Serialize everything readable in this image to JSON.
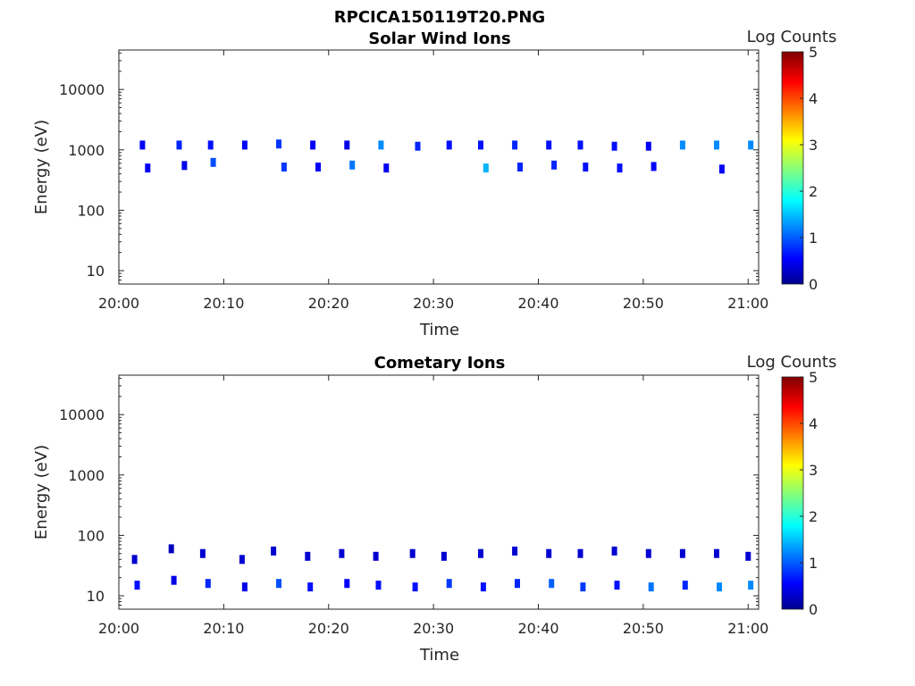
{
  "figure_title": "RPCICA150119T20.PNG",
  "chart_data": [
    {
      "type": "heatmap",
      "title": "Solar Wind Ions",
      "xlabel": "Time",
      "ylabel": "Energy (eV)",
      "xlim": [
        "20:00",
        "21:01"
      ],
      "x_ticks": [
        "20:00",
        "20:10",
        "20:20",
        "20:30",
        "20:40",
        "20:50",
        "21:00"
      ],
      "y_scale": "log",
      "ylim": [
        6,
        45000
      ],
      "y_ticks": [
        "10",
        "100",
        "1000",
        "10000"
      ],
      "colorbar": {
        "label": "Log Counts",
        "range": [
          0,
          5
        ],
        "ticks": [
          "0",
          "1",
          "2",
          "3",
          "4",
          "5"
        ],
        "colormap": "jet"
      },
      "points": [
        {
          "t": "20:02:15",
          "e": 1200,
          "c": 0.6
        },
        {
          "t": "20:02:45",
          "e": 500,
          "c": 0.6
        },
        {
          "t": "20:05:45",
          "e": 1200,
          "c": 0.8
        },
        {
          "t": "20:06:15",
          "e": 550,
          "c": 0.5
        },
        {
          "t": "20:08:45",
          "e": 1200,
          "c": 0.7
        },
        {
          "t": "20:09:00",
          "e": 620,
          "c": 1.0
        },
        {
          "t": "20:12:00",
          "e": 1200,
          "c": 0.6
        },
        {
          "t": "20:15:15",
          "e": 1250,
          "c": 0.9
        },
        {
          "t": "20:15:45",
          "e": 520,
          "c": 0.9
        },
        {
          "t": "20:18:30",
          "e": 1200,
          "c": 0.6
        },
        {
          "t": "20:19:00",
          "e": 520,
          "c": 0.6
        },
        {
          "t": "20:21:45",
          "e": 1200,
          "c": 0.5
        },
        {
          "t": "20:22:15",
          "e": 560,
          "c": 1.2
        },
        {
          "t": "20:25:00",
          "e": 1200,
          "c": 1.3
        },
        {
          "t": "20:25:30",
          "e": 500,
          "c": 0.6
        },
        {
          "t": "20:28:30",
          "e": 1150,
          "c": 0.8
        },
        {
          "t": "20:31:30",
          "e": 1200,
          "c": 0.7
        },
        {
          "t": "20:34:30",
          "e": 1200,
          "c": 0.7
        },
        {
          "t": "20:35:00",
          "e": 500,
          "c": 1.5
        },
        {
          "t": "20:37:45",
          "e": 1200,
          "c": 0.8
        },
        {
          "t": "20:38:15",
          "e": 520,
          "c": 0.8
        },
        {
          "t": "20:41:00",
          "e": 1200,
          "c": 0.7
        },
        {
          "t": "20:41:30",
          "e": 560,
          "c": 0.8
        },
        {
          "t": "20:44:00",
          "e": 1200,
          "c": 0.7
        },
        {
          "t": "20:44:30",
          "e": 520,
          "c": 0.7
        },
        {
          "t": "20:47:15",
          "e": 1150,
          "c": 0.7
        },
        {
          "t": "20:47:45",
          "e": 500,
          "c": 0.7
        },
        {
          "t": "20:50:30",
          "e": 1150,
          "c": 0.6
        },
        {
          "t": "20:51:00",
          "e": 530,
          "c": 0.6
        },
        {
          "t": "20:53:45",
          "e": 1200,
          "c": 1.3
        },
        {
          "t": "20:57:00",
          "e": 1200,
          "c": 1.3
        },
        {
          "t": "20:57:30",
          "e": 480,
          "c": 0.6
        },
        {
          "t": "21:00:15",
          "e": 1200,
          "c": 1.3
        }
      ]
    },
    {
      "type": "heatmap",
      "title": "Cometary Ions",
      "xlabel": "Time",
      "ylabel": "Energy (eV)",
      "xlim": [
        "20:00",
        "21:01"
      ],
      "x_ticks": [
        "20:00",
        "20:10",
        "20:20",
        "20:30",
        "20:40",
        "20:50",
        "21:00"
      ],
      "y_scale": "log",
      "ylim": [
        6,
        45000
      ],
      "y_ticks": [
        "10",
        "100",
        "1000",
        "10000"
      ],
      "colorbar": {
        "label": "Log Counts",
        "range": [
          0,
          5
        ],
        "ticks": [
          "0",
          "1",
          "2",
          "3",
          "4",
          "5"
        ],
        "colormap": "jet"
      },
      "points": [
        {
          "t": "20:01:30",
          "e": 40,
          "c": 0.4
        },
        {
          "t": "20:01:45",
          "e": 15,
          "c": 0.7
        },
        {
          "t": "20:05:00",
          "e": 60,
          "c": 0.3
        },
        {
          "t": "20:05:15",
          "e": 18,
          "c": 0.5
        },
        {
          "t": "20:08:00",
          "e": 50,
          "c": 0.4
        },
        {
          "t": "20:08:30",
          "e": 16,
          "c": 0.8
        },
        {
          "t": "20:11:45",
          "e": 40,
          "c": 0.4
        },
        {
          "t": "20:12:00",
          "e": 14,
          "c": 0.5
        },
        {
          "t": "20:14:45",
          "e": 55,
          "c": 0.4
        },
        {
          "t": "20:15:15",
          "e": 16,
          "c": 1.0
        },
        {
          "t": "20:18:00",
          "e": 45,
          "c": 0.4
        },
        {
          "t": "20:18:15",
          "e": 14,
          "c": 0.7
        },
        {
          "t": "20:21:15",
          "e": 50,
          "c": 0.4
        },
        {
          "t": "20:21:45",
          "e": 16,
          "c": 0.6
        },
        {
          "t": "20:24:30",
          "e": 45,
          "c": 0.4
        },
        {
          "t": "20:24:45",
          "e": 15,
          "c": 0.7
        },
        {
          "t": "20:28:00",
          "e": 50,
          "c": 0.4
        },
        {
          "t": "20:28:15",
          "e": 14,
          "c": 0.7
        },
        {
          "t": "20:31:00",
          "e": 45,
          "c": 0.4
        },
        {
          "t": "20:31:30",
          "e": 16,
          "c": 0.9
        },
        {
          "t": "20:34:30",
          "e": 50,
          "c": 0.4
        },
        {
          "t": "20:34:45",
          "e": 14,
          "c": 0.7
        },
        {
          "t": "20:37:45",
          "e": 55,
          "c": 0.4
        },
        {
          "t": "20:38:00",
          "e": 16,
          "c": 0.8
        },
        {
          "t": "20:41:00",
          "e": 50,
          "c": 0.4
        },
        {
          "t": "20:41:15",
          "e": 16,
          "c": 1.1
        },
        {
          "t": "20:44:00",
          "e": 50,
          "c": 0.4
        },
        {
          "t": "20:44:15",
          "e": 14,
          "c": 0.9
        },
        {
          "t": "20:47:15",
          "e": 55,
          "c": 0.4
        },
        {
          "t": "20:47:30",
          "e": 15,
          "c": 0.7
        },
        {
          "t": "20:50:30",
          "e": 50,
          "c": 0.4
        },
        {
          "t": "20:50:45",
          "e": 14,
          "c": 1.2
        },
        {
          "t": "20:53:45",
          "e": 50,
          "c": 0.4
        },
        {
          "t": "20:54:00",
          "e": 15,
          "c": 0.8
        },
        {
          "t": "20:57:00",
          "e": 50,
          "c": 0.4
        },
        {
          "t": "20:57:15",
          "e": 14,
          "c": 1.3
        },
        {
          "t": "21:00:00",
          "e": 45,
          "c": 0.4
        },
        {
          "t": "21:00:15",
          "e": 15,
          "c": 1.3
        }
      ]
    }
  ]
}
